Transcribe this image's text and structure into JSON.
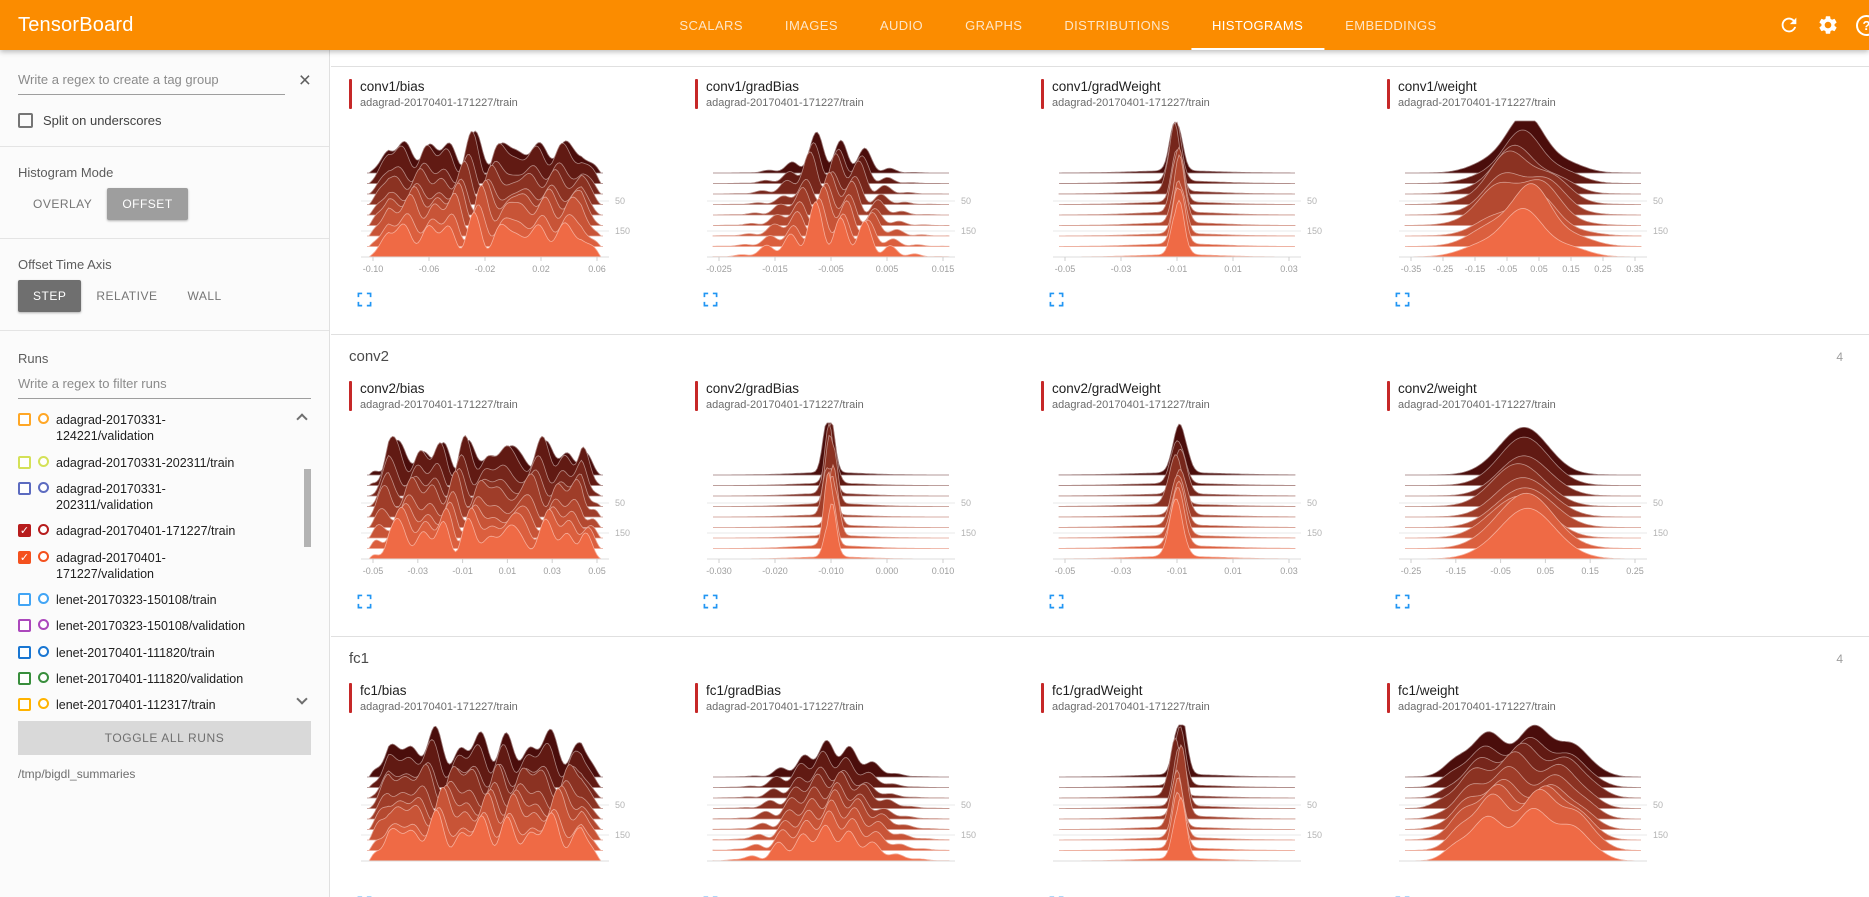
{
  "header": {
    "title": "TensorBoard",
    "brand_color": "#fb8c00",
    "tabs": [
      {
        "label": "SCALARS",
        "active": false
      },
      {
        "label": "IMAGES",
        "active": false
      },
      {
        "label": "AUDIO",
        "active": false
      },
      {
        "label": "GRAPHS",
        "active": false
      },
      {
        "label": "DISTRIBUTIONS",
        "active": false
      },
      {
        "label": "HISTOGRAMS",
        "active": true
      },
      {
        "label": "EMBEDDINGS",
        "active": false
      }
    ],
    "icons": [
      "refresh-icon",
      "gear-icon",
      "help-icon"
    ],
    "help_glyph": "?"
  },
  "sidebar": {
    "tag_filter_placeholder": "Write a regex to create a tag group",
    "clear_glyph": "×",
    "split_checkbox_label": "Split on underscores",
    "histogram_mode": {
      "label": "Histogram Mode",
      "options": [
        "OVERLAY",
        "OFFSET"
      ],
      "selected": "OFFSET"
    },
    "offset_time_axis": {
      "label": "Offset Time Axis",
      "options": [
        "STEP",
        "RELATIVE",
        "WALL"
      ],
      "selected": "STEP"
    },
    "runs_label": "Runs",
    "runs_filter_placeholder": "Write a regex to filter runs",
    "runs": [
      {
        "label": "adagrad-20170331-124221/validation",
        "color": "#ffa726",
        "checked": false
      },
      {
        "label": "adagrad-20170331-202311/train",
        "color": "#d4e157",
        "checked": false
      },
      {
        "label": "adagrad-20170331-202311/validation",
        "color": "#5c6bc0",
        "checked": false
      },
      {
        "label": "adagrad-20170401-171227/train",
        "color": "#b71c1c",
        "checked": true
      },
      {
        "label": "adagrad-20170401-171227/validation",
        "color": "#f4511e",
        "checked": true
      },
      {
        "label": "lenet-20170323-150108/train",
        "color": "#42a5f5",
        "checked": false
      },
      {
        "label": "lenet-20170323-150108/validation",
        "color": "#ab47bc",
        "checked": false
      },
      {
        "label": "lenet-20170401-111820/train",
        "color": "#1976d2",
        "checked": false
      },
      {
        "label": "lenet-20170401-111820/validation",
        "color": "#388e3c",
        "checked": false
      },
      {
        "label": "lenet-20170401-112317/train",
        "color": "#ffb300",
        "checked": false
      }
    ],
    "toggle_all_label": "TOGGLE ALL RUNS",
    "log_dir": "/tmp/bigdl_summaries"
  },
  "main": {
    "accent_color": "#c62828",
    "ridge_colors": [
      "#4a0d0b",
      "#ef6a45"
    ],
    "sections": [
      {
        "name": "conv1",
        "count": "",
        "header_visible": false,
        "cards": [
          {
            "title": "conv1/bias",
            "run": "adagrad-20170401-171227/train",
            "shape": "noisy",
            "seed": 3,
            "xticks": [
              "-0.10",
              "-0.06",
              "-0.02",
              "0.02",
              "0.06"
            ],
            "yticks": [
              "50",
              "150"
            ]
          },
          {
            "title": "conv1/gradBias",
            "run": "adagrad-20170401-171227/train",
            "shape": "bumpy",
            "seed": 7,
            "sigma": 0.17,
            "xticks": [
              "-0.025",
              "-0.015",
              "-0.005",
              "0.005",
              "0.015"
            ],
            "yticks": [
              "50",
              "150"
            ]
          },
          {
            "title": "conv1/gradWeight",
            "run": "adagrad-20170401-171227/train",
            "shape": "spike",
            "seed": 11,
            "sigma": 0.035,
            "xticks": [
              "-0.05",
              "-0.03",
              "-0.01",
              "0.01",
              "0.03"
            ],
            "yticks": [
              "50",
              "150"
            ]
          },
          {
            "title": "conv1/weight",
            "run": "adagrad-20170401-171227/train",
            "shape": "bell",
            "seed": 13,
            "sigma": 0.17,
            "xticks": [
              "-0.35",
              "-0.25",
              "-0.15",
              "-0.05",
              "0.05",
              "0.15",
              "0.25",
              "0.35"
            ],
            "yticks": [
              "50",
              "150"
            ]
          }
        ]
      },
      {
        "name": "conv2",
        "count": "4",
        "header_visible": true,
        "cards": [
          {
            "title": "conv2/bias",
            "run": "adagrad-20170401-171227/train",
            "shape": "noisy",
            "seed": 17,
            "xticks": [
              "-0.05",
              "-0.03",
              "-0.01",
              "0.01",
              "0.03",
              "0.05"
            ],
            "yticks": [
              "50",
              "150"
            ]
          },
          {
            "title": "conv2/gradBias",
            "run": "adagrad-20170401-171227/train",
            "shape": "spike",
            "seed": 19,
            "sigma": 0.03,
            "xticks": [
              "-0.030",
              "-0.020",
              "-0.010",
              "0.000",
              "0.010"
            ],
            "yticks": [
              "50",
              "150"
            ]
          },
          {
            "title": "conv2/gradWeight",
            "run": "adagrad-20170401-171227/train",
            "shape": "spike",
            "seed": 23,
            "sigma": 0.04,
            "xticks": [
              "-0.05",
              "-0.03",
              "-0.01",
              "0.01",
              "0.03"
            ],
            "yticks": [
              "50",
              "150"
            ]
          },
          {
            "title": "conv2/weight",
            "run": "adagrad-20170401-171227/train",
            "shape": "bell",
            "seed": 29,
            "sigma": 0.15,
            "xticks": [
              "-0.25",
              "-0.15",
              "-0.05",
              "0.05",
              "0.15",
              "0.25"
            ],
            "yticks": [
              "50",
              "150"
            ]
          }
        ]
      },
      {
        "name": "fc1",
        "count": "4",
        "header_visible": true,
        "cards": [
          {
            "title": "fc1/bias",
            "run": "adagrad-20170401-171227/train",
            "shape": "noisy",
            "seed": 31,
            "xticks": [],
            "yticks": [
              "50",
              "150"
            ]
          },
          {
            "title": "fc1/gradBias",
            "run": "adagrad-20170401-171227/train",
            "shape": "bumpy",
            "seed": 37,
            "sigma": 0.18,
            "xticks": [],
            "yticks": [
              "50",
              "150"
            ]
          },
          {
            "title": "fc1/gradWeight",
            "run": "adagrad-20170401-171227/train",
            "shape": "spike",
            "seed": 41,
            "sigma": 0.035,
            "xticks": [],
            "yticks": [
              "50",
              "150"
            ]
          },
          {
            "title": "fc1/weight",
            "run": "adagrad-20170401-171227/train",
            "shape": "plateau",
            "seed": 43,
            "sigma": 0.3,
            "xticks": [],
            "yticks": [
              "50",
              "150"
            ]
          }
        ]
      }
    ]
  }
}
